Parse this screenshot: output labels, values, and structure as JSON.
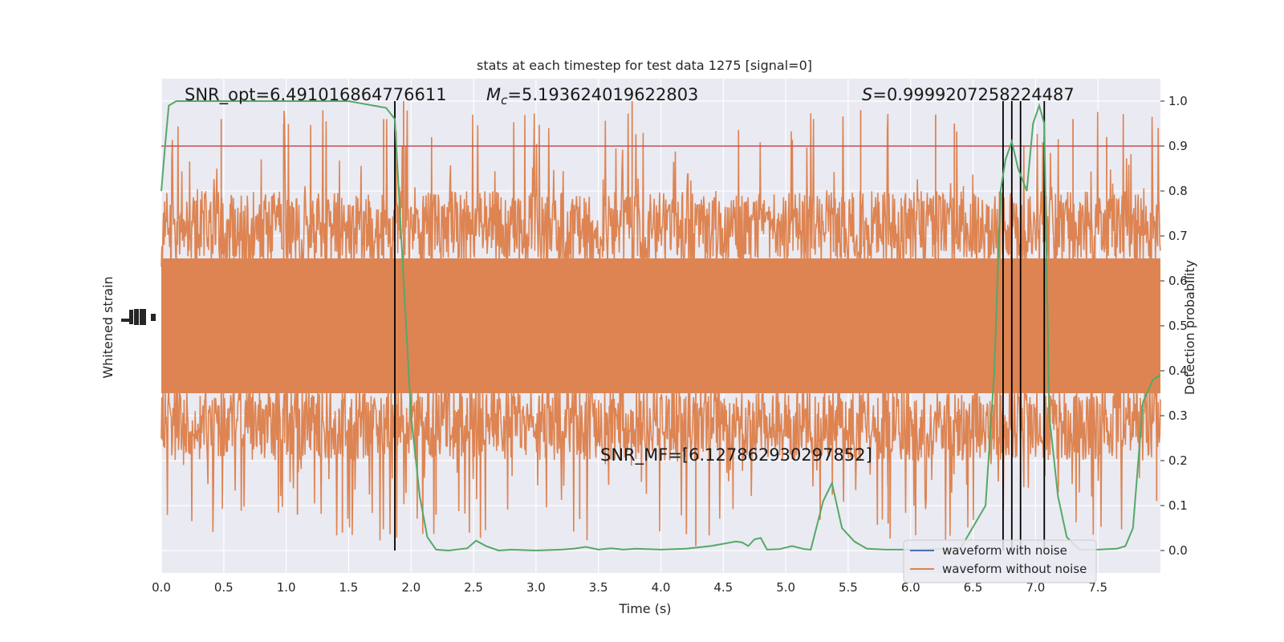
{
  "chart_data": {
    "type": "line",
    "title": "stats at each timestep for test data 1275 [signal=0]",
    "xlabel": "Time (s)",
    "ylabel_left": "Whitened strain",
    "ylabel_right": "Detection probability",
    "xlim": [
      0.0,
      8.0
    ],
    "ylim_right": [
      -0.05,
      1.05
    ],
    "x_ticks": [
      0.0,
      0.5,
      1.0,
      1.5,
      2.0,
      2.5,
      3.0,
      3.5,
      4.0,
      4.5,
      5.0,
      5.5,
      6.0,
      6.5,
      7.0,
      7.5
    ],
    "x_tick_labels": [
      "0.0",
      "0.5",
      "1.0",
      "1.5",
      "2.0",
      "2.5",
      "3.0",
      "3.5",
      "4.0",
      "4.5",
      "5.0",
      "5.5",
      "6.0",
      "6.5",
      "7.0",
      "7.5"
    ],
    "y_ticks_right": [
      0.0,
      0.1,
      0.2,
      0.3,
      0.4,
      0.5,
      0.6,
      0.7,
      0.8,
      0.9,
      1.0
    ],
    "y_tick_labels_right": [
      "0.0",
      "0.1",
      "0.2",
      "0.3",
      "0.4",
      "0.5",
      "0.6",
      "0.7",
      "0.8",
      "0.9",
      "1.0"
    ],
    "grid": true,
    "legend_position": "lower-right",
    "legend": [
      {
        "label": "waveform with noise",
        "color": "#4c72b0"
      },
      {
        "label": "waveform without noise",
        "color": "#dd8452"
      }
    ],
    "threshold": {
      "y": 0.9,
      "color": "#c44e52"
    },
    "detection_markers_x": [
      1.87,
      6.74,
      6.81,
      6.88,
      7.07
    ],
    "annotations": {
      "snr_opt": "SNR_opt=6.491016864776611",
      "mc_symbol": "M",
      "mc_sub": "c",
      "mc_value": "=5.193624019622803",
      "s_symbol": "S",
      "s_value": "=0.9999207258224487",
      "snr_mf": "SNR_MF=[6.127862930297852]"
    },
    "noise_series": {
      "name": "waveform without noise",
      "color": "#dd8452",
      "center": 0.5,
      "typical_range": [
        0.25,
        0.8
      ],
      "peak_max": 1.0,
      "trough_min": 0.01
    },
    "probability_series": {
      "color": "#55a868",
      "x": [
        0.0,
        0.03,
        0.06,
        0.12,
        0.2,
        0.4,
        0.8,
        1.2,
        1.5,
        1.6,
        1.7,
        1.8,
        1.87,
        1.95,
        2.0,
        2.07,
        2.13,
        2.2,
        2.3,
        2.45,
        2.52,
        2.6,
        2.7,
        2.8,
        3.0,
        3.2,
        3.3,
        3.4,
        3.5,
        3.6,
        3.7,
        3.8,
        4.0,
        4.2,
        4.4,
        4.5,
        4.6,
        4.65,
        4.7,
        4.75,
        4.8,
        4.85,
        4.95,
        5.05,
        5.15,
        5.2,
        5.3,
        5.37,
        5.45,
        5.55,
        5.65,
        5.8,
        6.0,
        6.2,
        6.4,
        6.6,
        6.67,
        6.72,
        6.76,
        6.81,
        6.86,
        6.93,
        6.98,
        7.03,
        7.07,
        7.11,
        7.18,
        7.25,
        7.35,
        7.5,
        7.65,
        7.72,
        7.78,
        7.86,
        7.94,
        8.0
      ],
      "y": [
        0.8,
        0.9,
        0.99,
        1.0,
        1.0,
        1.0,
        1.0,
        1.0,
        1.0,
        0.995,
        0.99,
        0.985,
        0.96,
        0.55,
        0.3,
        0.12,
        0.03,
        0.002,
        0.0,
        0.005,
        0.022,
        0.01,
        0.0,
        0.002,
        0.0,
        0.002,
        0.004,
        0.008,
        0.002,
        0.005,
        0.002,
        0.004,
        0.002,
        0.004,
        0.01,
        0.015,
        0.02,
        0.018,
        0.01,
        0.025,
        0.028,
        0.002,
        0.003,
        0.01,
        0.003,
        0.002,
        0.11,
        0.15,
        0.05,
        0.02,
        0.004,
        0.002,
        0.002,
        0.003,
        0.005,
        0.1,
        0.4,
        0.8,
        0.87,
        0.91,
        0.85,
        0.8,
        0.95,
        0.99,
        0.95,
        0.3,
        0.12,
        0.03,
        0.002,
        0.002,
        0.004,
        0.01,
        0.05,
        0.33,
        0.38,
        0.39
      ]
    }
  }
}
